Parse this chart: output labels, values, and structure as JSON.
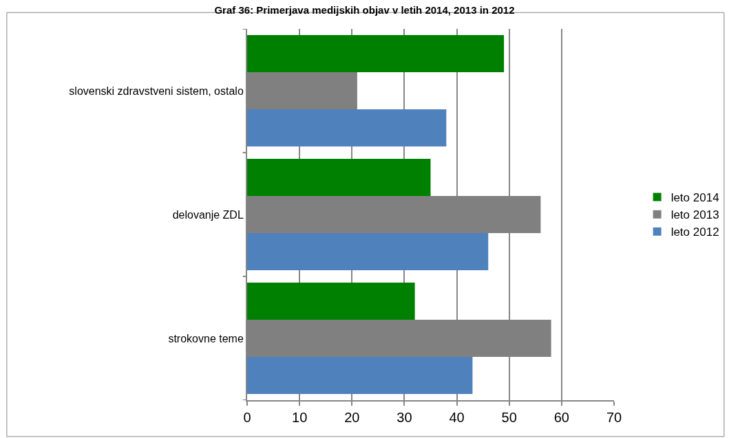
{
  "chart_data": {
    "type": "bar",
    "orientation": "horizontal",
    "title": "Graf 36: Primerjava medijskih objav v letih 2014, 2013 in 2012",
    "categories": [
      "slovenski zdravstveni sistem, ostalo",
      "delovanje ZDL",
      "strokovne teme"
    ],
    "series": [
      {
        "name": "leto 2014",
        "color": "#008000",
        "values": [
          49,
          35,
          32
        ]
      },
      {
        "name": "leto 2013",
        "color": "#808080",
        "values": [
          21,
          56,
          58
        ]
      },
      {
        "name": "leto 2012",
        "color": "#4f81bd",
        "values": [
          38,
          46,
          43
        ]
      }
    ],
    "xlim": [
      0,
      70
    ],
    "xticks": [
      0,
      10,
      20,
      30,
      40,
      50,
      60,
      70
    ],
    "grid": "x",
    "legend": "right"
  }
}
